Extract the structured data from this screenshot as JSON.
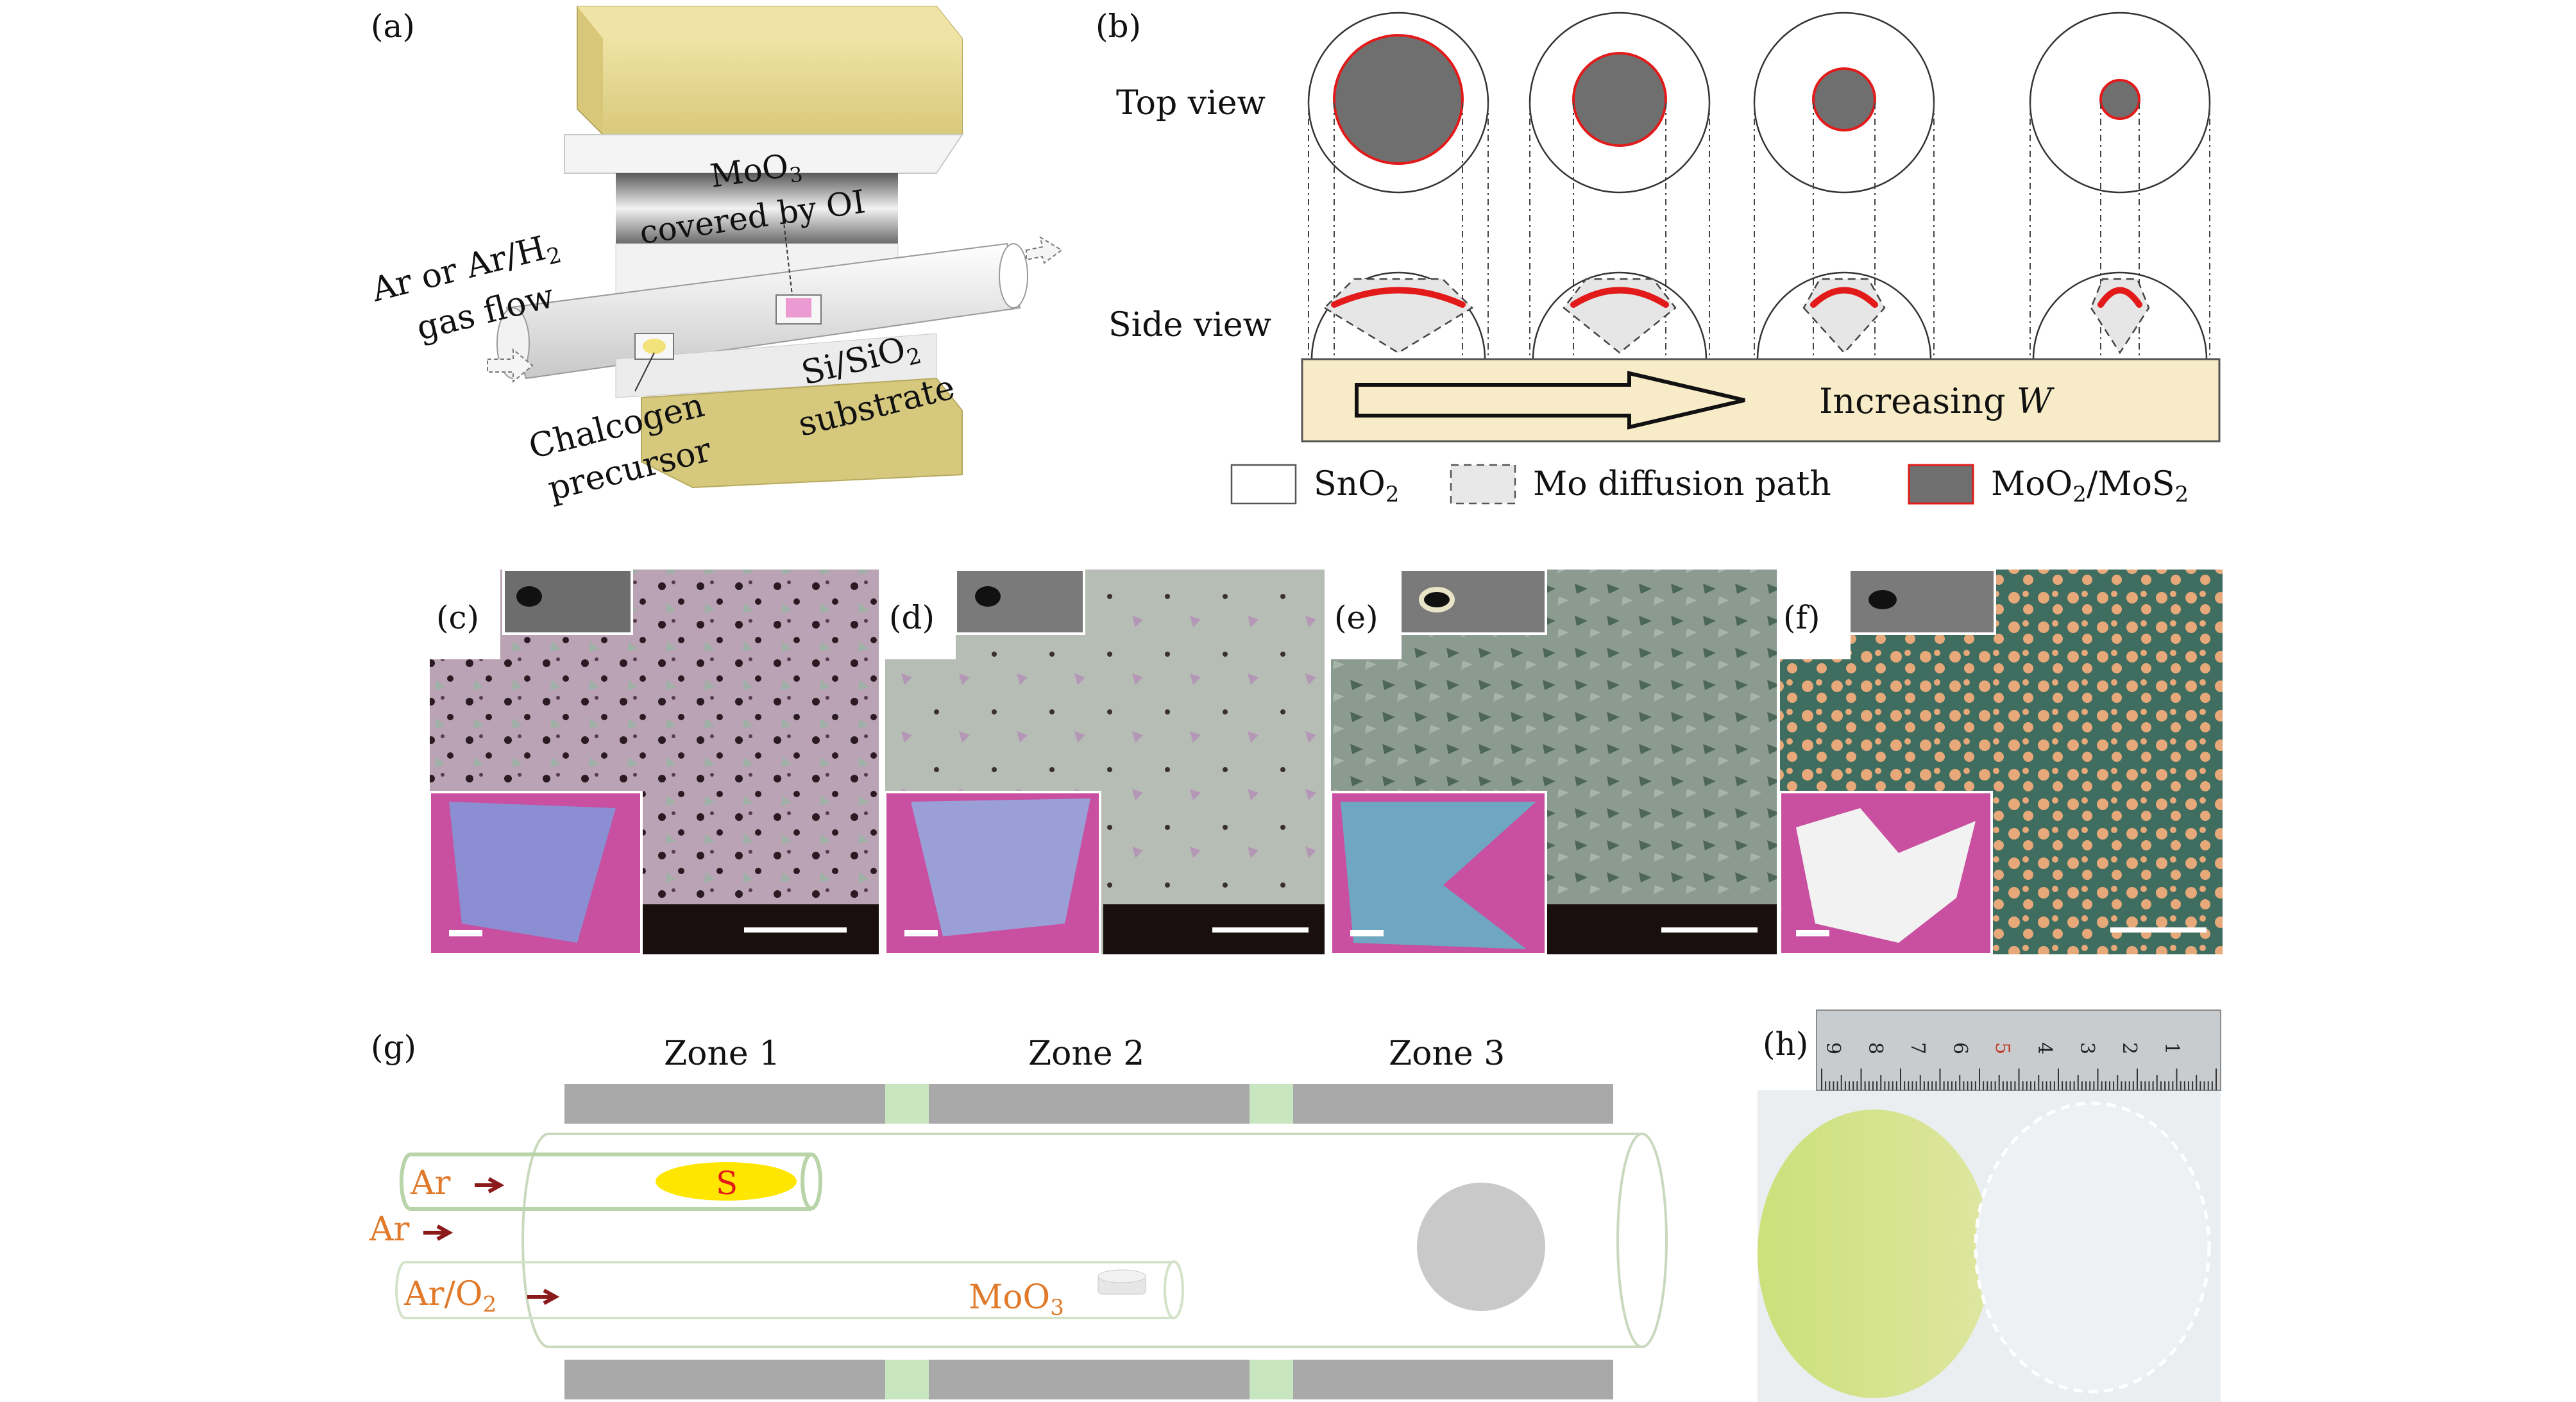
{
  "panels": {
    "a": {
      "label": "(a)",
      "source_label_1": "MoO",
      "source_label_sub": "3",
      "source_label_2": "covered by OI",
      "gas_1": "Ar or Ar/H",
      "gas_sub": "2",
      "gas_2": "gas flow",
      "precursor_1": "Chalcogen",
      "precursor_2": "precursor",
      "substrate_1": "Si/SiO",
      "substrate_sub": "2",
      "substrate_2": "substrate"
    },
    "b": {
      "label": "(b)",
      "top_view": "Top view",
      "side_view": "Side view",
      "increasing": "Increasing ",
      "increasing_var": "W",
      "legend": [
        {
          "text": "SnO",
          "sub": "2",
          "style": "solid"
        },
        {
          "text": "Mo diffusion path",
          "sub": "",
          "style": "dashed"
        },
        {
          "text": "MoO",
          "sub": "2",
          "text2": "/MoS",
          "sub2": "2",
          "style": "filled"
        }
      ],
      "circle_scale": [
        1.0,
        0.72,
        0.48,
        0.3
      ]
    },
    "micro": [
      {
        "label": "(c)"
      },
      {
        "label": "(d)"
      },
      {
        "label": "(e)"
      },
      {
        "label": "(f)"
      }
    ],
    "g": {
      "label": "(g)",
      "zones": [
        "Zone 1",
        "Zone 2",
        "Zone 3"
      ],
      "gas_top": "Ar",
      "gas_mid": "Ar",
      "gas_bottom_1": "Ar/O",
      "gas_bottom_sub": "2",
      "sulfur": "S",
      "moo3_1": "MoO",
      "moo3_sub": "3"
    },
    "h": {
      "label": "(h)",
      "ruler_numbers": [
        "9",
        "8",
        "7",
        "6",
        "5",
        "4",
        "3",
        "2",
        "1"
      ]
    }
  },
  "colors": {
    "mo_fill": "#6f6f6f",
    "red": "#e31a1a",
    "tube_green": "#b8d4a8",
    "furnace_gray": "#a9a9a9",
    "zone_gap": "#c7e6c0",
    "gas_orange": "#e07a2a",
    "sulfur_yellow": "#ffe600",
    "substrate_bar": "#f8ecc8"
  }
}
